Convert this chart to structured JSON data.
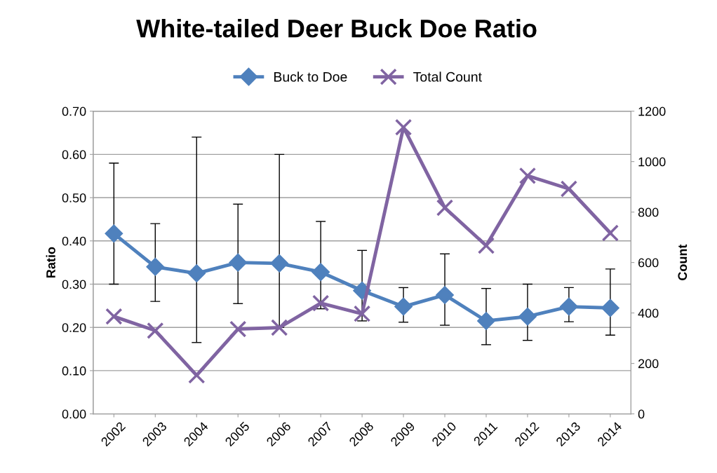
{
  "chart_data": {
    "type": "line",
    "title": "White-tailed Deer Buck Doe Ratio",
    "ylabel": "Ratio",
    "y2label": "Count",
    "categories": [
      "2002",
      "2003",
      "2004",
      "2005",
      "2006",
      "2007",
      "2008",
      "2009",
      "2010",
      "2011",
      "2012",
      "2013",
      "2014"
    ],
    "series": [
      {
        "name": "Buck to Doe",
        "color": "#4f81bd",
        "marker": "diamond",
        "values": [
          0.417,
          0.34,
          0.325,
          0.35,
          0.348,
          0.328,
          0.285,
          0.248,
          0.275,
          0.215,
          0.225,
          0.248,
          0.245
        ],
        "errors": [
          [
            0.3,
            0.58
          ],
          [
            0.26,
            0.44
          ],
          [
            0.165,
            0.64
          ],
          [
            0.255,
            0.485
          ],
          [
            0.2,
            0.6
          ],
          [
            0.243,
            0.445
          ],
          [
            0.215,
            0.378
          ],
          [
            0.212,
            0.292
          ],
          [
            0.205,
            0.37
          ],
          [
            0.16,
            0.29
          ],
          [
            0.17,
            0.3
          ],
          [
            0.213,
            0.292
          ],
          [
            0.182,
            0.335
          ]
        ]
      },
      {
        "name": "Total Count",
        "color": "#8064a2",
        "marker": "cross",
        "axis": "y2",
        "values": [
          386,
          330,
          153,
          336,
          342,
          439,
          397,
          1136,
          817,
          667,
          944,
          892,
          717
        ]
      }
    ],
    "ylim": [
      0,
      0.7
    ],
    "yticks": [
      {
        "value": 0,
        "label": "0.00"
      },
      {
        "value": 0.1,
        "label": "0.10"
      },
      {
        "value": 0.2,
        "label": "0.20"
      },
      {
        "value": 0.3,
        "label": "0.30"
      },
      {
        "value": 0.4,
        "label": "0.40"
      },
      {
        "value": 0.5,
        "label": "0.50"
      },
      {
        "value": 0.6,
        "label": "0.60"
      },
      {
        "value": 0.7,
        "label": "0.70"
      }
    ],
    "y2lim": [
      0,
      1200
    ],
    "y2ticks": [
      0,
      200,
      400,
      600,
      800,
      1000,
      1200
    ],
    "grid": "y",
    "legend": "top",
    "line_style": "solid"
  }
}
